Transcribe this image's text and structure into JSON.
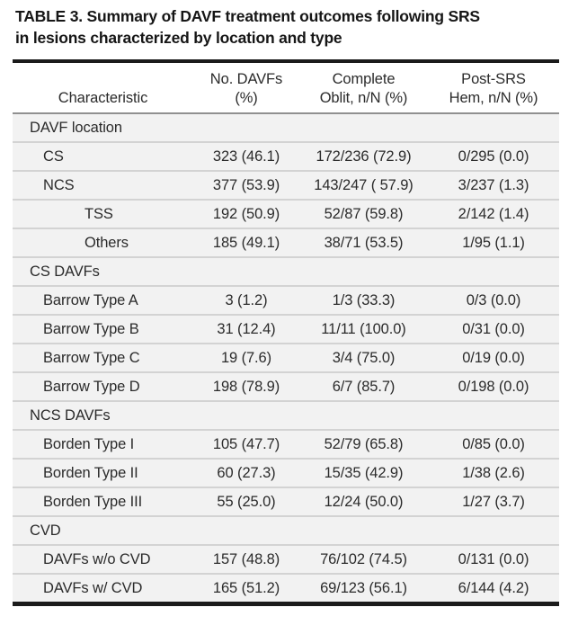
{
  "colors": {
    "page_bg": "#ffffff",
    "title_text": "#161616",
    "body_text": "#2b2b2b",
    "heavy_border": "#1b1b1b",
    "header_rule": "#909090",
    "row_rule": "#d3d3d3",
    "row_bg": "#f2f2f2",
    "header_bg": "#ffffff"
  },
  "table": {
    "title_line1": "TABLE 3. Summary of DAVF treatment outcomes following SRS",
    "title_line2": "in lesions characterized by location and type",
    "columns": [
      {
        "line1": "",
        "line2": "Characteristic"
      },
      {
        "line1": "No. DAVFs",
        "line2": "(%)"
      },
      {
        "line1": "Complete",
        "line2": "Oblit, n/N (%)"
      },
      {
        "line1": "Post-SRS",
        "line2": "Hem, n/N (%)"
      }
    ],
    "rows": [
      {
        "label": "DAVF location",
        "level": 0,
        "section": true,
        "cells": [
          "",
          "",
          ""
        ]
      },
      {
        "label": "CS",
        "level": 1,
        "section": false,
        "cells": [
          "323 (46.1)",
          "172/236 (72.9)",
          "0/295 (0.0)"
        ]
      },
      {
        "label": "NCS",
        "level": 1,
        "section": false,
        "cells": [
          "377 (53.9)",
          "143/247 ( 57.9)",
          "3/237 (1.3)"
        ]
      },
      {
        "label": "TSS",
        "level": 2,
        "section": false,
        "cells": [
          "192 (50.9)",
          "52/87 (59.8)",
          "2/142 (1.4)"
        ]
      },
      {
        "label": "Others",
        "level": 2,
        "section": false,
        "cells": [
          "185 (49.1)",
          "38/71 (53.5)",
          "1/95 (1.1)"
        ]
      },
      {
        "label": "CS DAVFs",
        "level": 0,
        "section": true,
        "cells": [
          "",
          "",
          ""
        ]
      },
      {
        "label": "Barrow Type A",
        "level": 1,
        "section": false,
        "cells": [
          "3 (1.2)",
          "1/3 (33.3)",
          "0/3 (0.0)"
        ]
      },
      {
        "label": "Barrow Type B",
        "level": 1,
        "section": false,
        "cells": [
          "31 (12.4)",
          "11/11 (100.0)",
          "0/31 (0.0)"
        ]
      },
      {
        "label": "Barrow Type C",
        "level": 1,
        "section": false,
        "cells": [
          "19 (7.6)",
          "3/4 (75.0)",
          "0/19 (0.0)"
        ]
      },
      {
        "label": "Barrow Type D",
        "level": 1,
        "section": false,
        "cells": [
          "198 (78.9)",
          "6/7 (85.7)",
          "0/198 (0.0)"
        ]
      },
      {
        "label": "NCS DAVFs",
        "level": 0,
        "section": true,
        "cells": [
          "",
          "",
          ""
        ]
      },
      {
        "label": "Borden Type I",
        "level": 1,
        "section": false,
        "cells": [
          "105 (47.7)",
          "52/79 (65.8)",
          "0/85 (0.0)"
        ]
      },
      {
        "label": "Borden Type II",
        "level": 1,
        "section": false,
        "cells": [
          "60 (27.3)",
          "15/35 (42.9)",
          "1/38 (2.6)"
        ]
      },
      {
        "label": "Borden Type III",
        "level": 1,
        "section": false,
        "cells": [
          "55 (25.0)",
          "12/24 (50.0)",
          "1/27 (3.7)"
        ]
      },
      {
        "label": "CVD",
        "level": 0,
        "section": true,
        "cells": [
          "",
          "",
          ""
        ]
      },
      {
        "label": "DAVFs w/o CVD",
        "level": 1,
        "section": false,
        "cells": [
          "157 (48.8)",
          "76/102 (74.5)",
          "0/131 (0.0)"
        ]
      },
      {
        "label": "DAVFs w/ CVD",
        "level": 1,
        "section": false,
        "cells": [
          "165 (51.2)",
          "69/123 (56.1)",
          "6/144 (4.2)"
        ]
      }
    ]
  }
}
